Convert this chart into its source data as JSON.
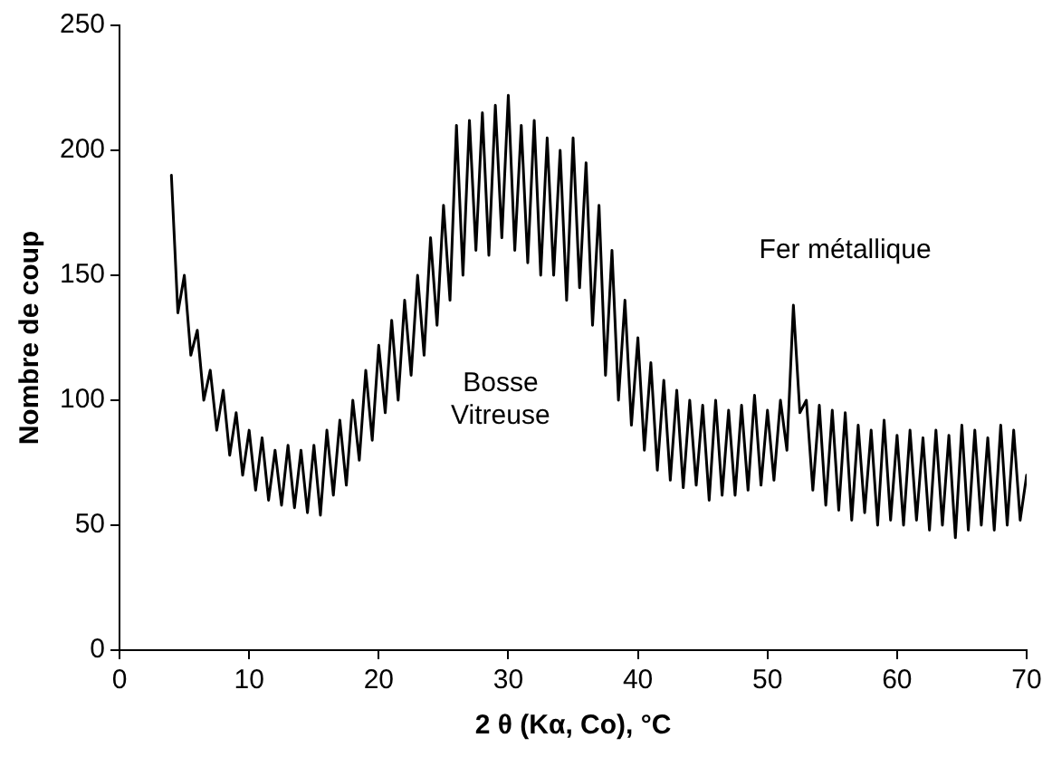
{
  "chart_data": {
    "type": "line",
    "xlabel": "2 θ (Kα, Co), °C",
    "ylabel": "Nombre de coup",
    "xlim": [
      0,
      70
    ],
    "xticks": [
      0,
      10,
      20,
      30,
      40,
      50,
      60,
      70
    ],
    "ylim": [
      0,
      250
    ],
    "yticks": [
      0,
      50,
      100,
      150,
      200,
      250
    ],
    "grid": false,
    "legend": false,
    "marker": "none",
    "line_style": "solid",
    "annotations": [
      "Bosse\nVitreuse",
      "Fer métallique"
    ],
    "series": [
      {
        "color": "#000000",
        "x": [
          4,
          4.5,
          5,
          5.5,
          6,
          6.5,
          7,
          7.5,
          8,
          8.5,
          9,
          9.5,
          10,
          10.5,
          11,
          11.5,
          12,
          12.5,
          13,
          13.5,
          14,
          14.5,
          15,
          15.5,
          16,
          16.5,
          17,
          17.5,
          18,
          18.5,
          19,
          19.5,
          20,
          20.5,
          21,
          21.5,
          22,
          22.5,
          23,
          23.5,
          24,
          24.5,
          25,
          25.5,
          26,
          26.5,
          27,
          27.5,
          28,
          28.5,
          29,
          29.5,
          30,
          30.5,
          31,
          31.5,
          32,
          32.5,
          33,
          33.5,
          34,
          34.5,
          35,
          35.5,
          36,
          36.5,
          37,
          37.5,
          38,
          38.5,
          39,
          39.5,
          40,
          40.5,
          41,
          41.5,
          42,
          42.5,
          43,
          43.5,
          44,
          44.5,
          45,
          45.5,
          46,
          46.5,
          47,
          47.5,
          48,
          48.5,
          49,
          49.5,
          50,
          50.5,
          51,
          51.5,
          52,
          52.5,
          53,
          53.5,
          54,
          54.5,
          55,
          55.5,
          56,
          56.5,
          57,
          57.5,
          58,
          58.5,
          59,
          59.5,
          60,
          60.5,
          61,
          61.5,
          62,
          62.5,
          63,
          63.5,
          64,
          64.5,
          65,
          65.5,
          66,
          66.5,
          67,
          67.5,
          68,
          68.5,
          69,
          69.5,
          70
        ],
        "values": [
          190,
          135,
          150,
          118,
          128,
          100,
          112,
          88,
          104,
          78,
          95,
          70,
          88,
          64,
          85,
          60,
          80,
          58,
          82,
          57,
          80,
          55,
          82,
          54,
          88,
          62,
          92,
          66,
          100,
          76,
          112,
          84,
          122,
          95,
          132,
          100,
          140,
          110,
          150,
          118,
          165,
          130,
          178,
          140,
          210,
          150,
          212,
          160,
          215,
          158,
          218,
          165,
          222,
          160,
          210,
          155,
          212,
          150,
          205,
          150,
          200,
          140,
          205,
          145,
          195,
          130,
          178,
          110,
          160,
          100,
          140,
          90,
          125,
          80,
          115,
          72,
          108,
          68,
          104,
          65,
          100,
          66,
          98,
          60,
          100,
          62,
          96,
          62,
          98,
          64,
          102,
          66,
          96,
          68,
          100,
          80,
          138,
          95,
          100,
          64,
          98,
          58,
          96,
          56,
          95,
          52,
          90,
          55,
          88,
          50,
          92,
          52,
          86,
          50,
          88,
          52,
          85,
          48,
          88,
          50,
          86,
          45,
          90,
          48,
          88,
          50,
          85,
          48,
          90,
          50,
          88,
          52,
          70
        ]
      }
    ]
  }
}
